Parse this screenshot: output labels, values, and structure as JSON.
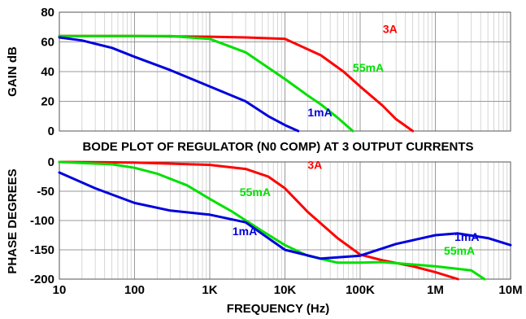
{
  "chart_data": [
    {
      "type": "line",
      "panel": "gain",
      "ylabel": "GAIN dB",
      "ylim": [
        0,
        80
      ],
      "y_ticks": [
        "80",
        "60",
        "40",
        "20",
        "0"
      ],
      "x_scale": "log",
      "xlim": [
        10,
        10000000
      ],
      "grid": true,
      "series": [
        {
          "name": "3A",
          "color": "#ff0000",
          "x": [
            10,
            100,
            1000,
            3000,
            10000,
            30000,
            60000,
            100000,
            200000,
            300000,
            500000
          ],
          "y": [
            64,
            64,
            63.5,
            63,
            62,
            51,
            40,
            30,
            17,
            8,
            0
          ]
        },
        {
          "name": "55mA",
          "color": "#00e000",
          "x": [
            10,
            100,
            300,
            1000,
            3000,
            10000,
            20000,
            30000,
            50000,
            80000
          ],
          "y": [
            64,
            64,
            64,
            62,
            53,
            35,
            24,
            18,
            9,
            0
          ]
        },
        {
          "name": "1mA",
          "color": "#0000dd",
          "x": [
            10,
            20,
            50,
            100,
            300,
            1000,
            3000,
            6000,
            10000,
            15000
          ],
          "y": [
            63,
            61,
            56,
            50,
            41,
            30,
            20,
            10,
            4,
            0
          ]
        }
      ],
      "annotations": [
        {
          "text": "3A",
          "color": "#ff0000",
          "x": 200000,
          "y": 66
        },
        {
          "text": "55mA",
          "color": "#00e000",
          "x": 80000,
          "y": 40
        },
        {
          "text": "1mA",
          "color": "#0000dd",
          "x": 20000,
          "y": 10
        }
      ]
    },
    {
      "type": "line",
      "panel": "phase",
      "title": "BODE PLOT OF REGULATOR (N0 COMP) AT 3 OUTPUT CURRENTS",
      "ylabel": "PHASE DEGREES",
      "xlabel": "FREQUENCY (Hz)",
      "ylim": [
        -200,
        0
      ],
      "y_ticks": [
        "0",
        "-50",
        "-100",
        "-150",
        "-200"
      ],
      "x_scale": "log",
      "xlim": [
        10,
        10000000
      ],
      "x_ticks": [
        "10",
        "100",
        "1K",
        "10K",
        "100K",
        "1M",
        "10M"
      ],
      "grid": true,
      "series": [
        {
          "name": "3A",
          "color": "#ff0000",
          "x": [
            10,
            100,
            1000,
            3000,
            6000,
            10000,
            20000,
            50000,
            100000,
            200000,
            500000,
            1000000,
            2000000
          ],
          "y": [
            0,
            -1,
            -5,
            -12,
            -25,
            -45,
            -85,
            -130,
            -158,
            -168,
            -178,
            -188,
            -200
          ]
        },
        {
          "name": "55mA",
          "color": "#00e000",
          "x": [
            10,
            50,
            100,
            200,
            500,
            1000,
            2000,
            5000,
            10000,
            20000,
            50000,
            100000,
            200000,
            500000,
            1000000,
            3000000,
            4500000
          ],
          "y": [
            0,
            -4,
            -10,
            -20,
            -40,
            -63,
            -85,
            -118,
            -142,
            -160,
            -172,
            -172,
            -171,
            -175,
            -178,
            -185,
            -200
          ]
        },
        {
          "name": "1mA",
          "color": "#0000dd",
          "x": [
            10,
            30,
            100,
            300,
            1000,
            3000,
            10000,
            30000,
            100000,
            300000,
            1000000,
            2000000,
            5000000,
            10000000
          ],
          "y": [
            -18,
            -45,
            -70,
            -83,
            -90,
            -103,
            -150,
            -165,
            -160,
            -140,
            -125,
            -122,
            -130,
            -142
          ]
        }
      ],
      "annotations": [
        {
          "text": "3A",
          "color": "#ff0000",
          "x": 20000,
          "y": -12
        },
        {
          "text": "55mA",
          "color": "#00e000",
          "x": 2500,
          "y": -58
        },
        {
          "text": "1mA",
          "color": "#0000dd",
          "x": 2000,
          "y": -125
        },
        {
          "text": "1mA",
          "color": "#0000dd",
          "x": 1800000,
          "y": -135
        },
        {
          "text": "55mA",
          "color": "#00e000",
          "x": 1300000,
          "y": -158
        }
      ]
    }
  ]
}
